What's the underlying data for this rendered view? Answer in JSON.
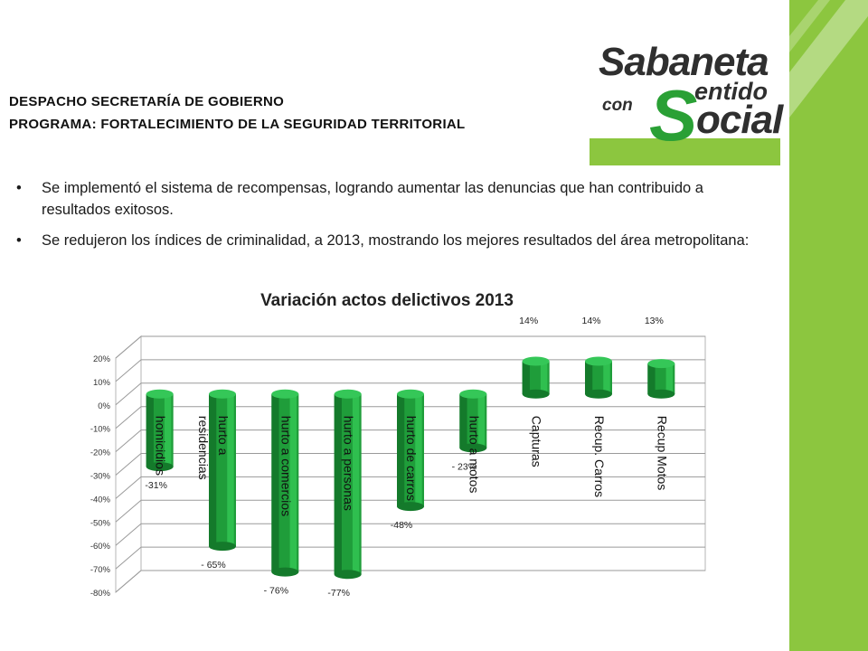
{
  "header": {
    "line1": "DESPACHO SECRETARÍA DE GOBIERNO",
    "line2": "PROGRAMA: FORTALECIMIENTO DE LA SEGURIDAD TERRITORIAL"
  },
  "logo": {
    "word1": "Sabaneta",
    "word2": "con",
    "word3": "entido",
    "word4": "ocial",
    "swash": "S"
  },
  "bullets": [
    "Se implementó el sistema de recompensas, logrando aumentar las denuncias que han contribuido a resultados exitosos.",
    "Se redujeron los índices de criminalidad, a 2013, mostrando los mejores resultados del área metropolitana:"
  ],
  "colors": {
    "accent_green": "#8cc63f",
    "bar_green": "#1f9d3a",
    "logo_green": "#2aa035"
  },
  "chart_data": {
    "type": "bar",
    "title": "Variación actos delictivos 2013",
    "categories": [
      "homicidios",
      "hurto a residencias",
      "hurto a comercios",
      "hurto a personas",
      "hurto de carros",
      "hurto a motos",
      "Capturas",
      "Recup. Carros",
      "Recup Motos"
    ],
    "values": [
      -31,
      -65,
      -76,
      -77,
      -48,
      -23,
      14,
      14,
      13
    ],
    "data_labels": [
      "-31%",
      "- 65%",
      "- 76%",
      "-77%",
      "-48%",
      "- 23%",
      "14%",
      "14%",
      "13%"
    ],
    "ylim": [
      -80,
      20
    ],
    "yticks": [
      "20%",
      "10%",
      "0%",
      "-10%",
      "-20%",
      "-30%",
      "-40%",
      "-50%",
      "-60%",
      "-70%",
      "-80%"
    ],
    "grid": true,
    "style": "3d-cylinder"
  }
}
